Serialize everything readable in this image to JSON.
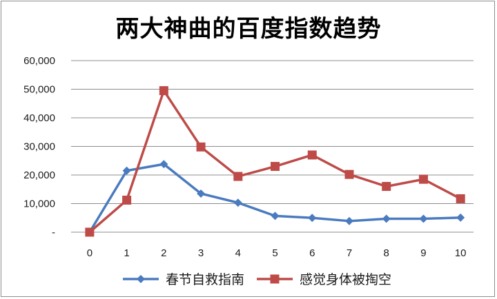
{
  "chart_data": {
    "type": "line",
    "title": "两大神曲的百度指数趋势",
    "xlabel": "",
    "ylabel": "",
    "x": [
      0,
      1,
      2,
      3,
      4,
      5,
      6,
      7,
      8,
      9,
      10
    ],
    "ylim": [
      0,
      60000
    ],
    "yticks": [
      "-",
      "10,000",
      "20,000",
      "30,000",
      "40,000",
      "50,000",
      "60,000"
    ],
    "grid": true,
    "legend": "bottom",
    "series": [
      {
        "name": "春节自救指南",
        "color": "#4a7bbf",
        "marker": "diamond",
        "values": [
          0,
          21500,
          23800,
          13500,
          10300,
          5700,
          5000,
          3900,
          4700,
          4700,
          5100
        ]
      },
      {
        "name": "感觉身体被掏空",
        "color": "#be4b48",
        "marker": "square",
        "values": [
          0,
          11200,
          49500,
          29800,
          19500,
          23000,
          27000,
          20200,
          16000,
          18500,
          11700
        ]
      }
    ]
  }
}
